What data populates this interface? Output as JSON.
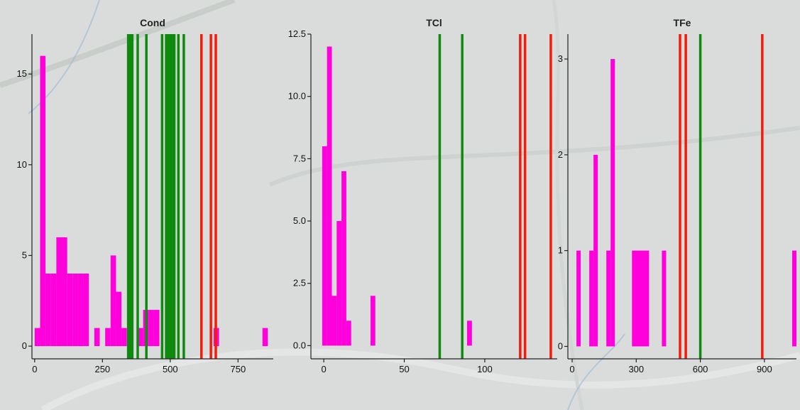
{
  "colors": {
    "histogram": "#ff00dd",
    "green_line": "#0f8a0f",
    "red_line": "#f21b0c",
    "background": "#d9dcda"
  },
  "chart_data": [
    {
      "type": "bar",
      "title": "Cond",
      "xlabel": "",
      "ylabel": "",
      "xlim": [
        -10,
        880
      ],
      "ylim": [
        -0.7,
        17.2
      ],
      "x_ticks": [
        "0",
        "250",
        "500",
        "750"
      ],
      "y_ticks": [
        "0",
        "5",
        "10",
        "15"
      ],
      "histogram": [
        {
          "x0": 0,
          "x1": 20,
          "count": 1
        },
        {
          "x0": 20,
          "x1": 40,
          "count": 16
        },
        {
          "x0": 40,
          "x1": 60,
          "count": 4
        },
        {
          "x0": 60,
          "x1": 80,
          "count": 4
        },
        {
          "x0": 80,
          "x1": 100,
          "count": 6
        },
        {
          "x0": 100,
          "x1": 120,
          "count": 6
        },
        {
          "x0": 120,
          "x1": 140,
          "count": 4
        },
        {
          "x0": 140,
          "x1": 160,
          "count": 4
        },
        {
          "x0": 160,
          "x1": 180,
          "count": 4
        },
        {
          "x0": 180,
          "x1": 200,
          "count": 4
        },
        {
          "x0": 220,
          "x1": 240,
          "count": 1
        },
        {
          "x0": 260,
          "x1": 280,
          "count": 1
        },
        {
          "x0": 280,
          "x1": 300,
          "count": 5
        },
        {
          "x0": 300,
          "x1": 320,
          "count": 3
        },
        {
          "x0": 320,
          "x1": 340,
          "count": 1
        },
        {
          "x0": 380,
          "x1": 400,
          "count": 1
        },
        {
          "x0": 400,
          "x1": 420,
          "count": 2
        },
        {
          "x0": 420,
          "x1": 440,
          "count": 2
        },
        {
          "x0": 440,
          "x1": 460,
          "count": 2
        },
        {
          "x0": 660,
          "x1": 680,
          "count": 1
        },
        {
          "x0": 840,
          "x1": 860,
          "count": 1
        }
      ],
      "green_lines": [
        345,
        352,
        360,
        380,
        412,
        470,
        485,
        492,
        500,
        507,
        515,
        530,
        550
      ],
      "red_lines": [
        615,
        650,
        668
      ]
    },
    {
      "type": "bar",
      "title": "TCl",
      "xlabel": "",
      "ylabel": "",
      "xlim": [
        -8,
        145
      ],
      "ylim": [
        -0.53,
        12.5
      ],
      "x_ticks": [
        "0",
        "50",
        "100"
      ],
      "y_ticks": [
        "0.0",
        "2.5",
        "5.0",
        "7.5",
        "10.0",
        "12.5"
      ],
      "histogram": [
        {
          "x0": -1,
          "x1": 2,
          "count": 8
        },
        {
          "x0": 2,
          "x1": 5,
          "count": 12
        },
        {
          "x0": 5,
          "x1": 8,
          "count": 2
        },
        {
          "x0": 8,
          "x1": 11,
          "count": 5
        },
        {
          "x0": 11,
          "x1": 14,
          "count": 7
        },
        {
          "x0": 14,
          "x1": 17,
          "count": 1
        },
        {
          "x0": 29,
          "x1": 32,
          "count": 2
        },
        {
          "x0": 89,
          "x1": 92,
          "count": 1
        }
      ],
      "green_lines": [
        72,
        86
      ],
      "red_lines": [
        122,
        125,
        141
      ]
    },
    {
      "type": "bar",
      "title": "TFe",
      "xlabel": "",
      "ylabel": "",
      "xlim": [
        -20,
        1050
      ],
      "ylim": [
        -0.13,
        3.26
      ],
      "x_ticks": [
        "0",
        "300",
        "600",
        "900"
      ],
      "y_ticks": [
        "0",
        "1",
        "2",
        "3"
      ],
      "histogram": [
        {
          "x0": 20,
          "x1": 40,
          "count": 1
        },
        {
          "x0": 80,
          "x1": 100,
          "count": 1
        },
        {
          "x0": 100,
          "x1": 120,
          "count": 2
        },
        {
          "x0": 160,
          "x1": 180,
          "count": 1
        },
        {
          "x0": 180,
          "x1": 200,
          "count": 3
        },
        {
          "x0": 280,
          "x1": 360,
          "count": 1
        },
        {
          "x0": 420,
          "x1": 440,
          "count": 1
        },
        {
          "x0": 1030,
          "x1": 1050,
          "count": 1
        }
      ],
      "green_lines": [
        600
      ],
      "red_lines": [
        505,
        532,
        890
      ]
    }
  ]
}
